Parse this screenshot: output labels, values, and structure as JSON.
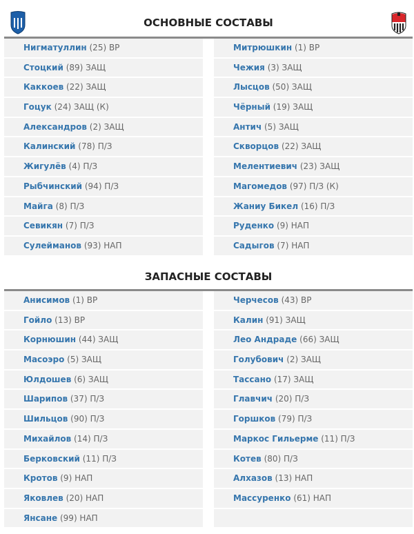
{
  "header": {
    "starting_title": "ОСНОВНЫЕ СОСТАВЫ",
    "subs_title": "ЗАПАСНЫЕ СОСТАВЫ"
  },
  "teams": {
    "home_logo": "shield-logo-blue",
    "away_logo": "shield-logo-red-black"
  },
  "colors": {
    "name": "#3676ad",
    "row_bg": "#f2f2f2",
    "divider": "#8a8a8a"
  },
  "starting": {
    "home": [
      {
        "name": "Нигматуллин",
        "info": " (25) ВР"
      },
      {
        "name": "Стоцкий",
        "info": " (89) ЗАЩ"
      },
      {
        "name": "Каккоев",
        "info": " (22) ЗАЩ"
      },
      {
        "name": "Гоцук",
        "info": " (24) ЗАЩ (К)"
      },
      {
        "name": "Александров",
        "info": " (2) ЗАЩ"
      },
      {
        "name": "Калинский",
        "info": " (78) П/З"
      },
      {
        "name": "Жигулёв",
        "info": " (4) П/З"
      },
      {
        "name": "Рыбчинский",
        "info": " (94) П/З"
      },
      {
        "name": "Майга",
        "info": " (8) П/З"
      },
      {
        "name": "Севикян",
        "info": " (7) П/З"
      },
      {
        "name": "Сулейманов",
        "info": " (93) НАП"
      }
    ],
    "away": [
      {
        "name": "Митрюшкин",
        "info": " (1) ВР"
      },
      {
        "name": "Чежия",
        "info": " (3) ЗАЩ"
      },
      {
        "name": "Лысцов",
        "info": " (50) ЗАЩ"
      },
      {
        "name": "Чёрный",
        "info": " (19) ЗАЩ"
      },
      {
        "name": "Антич",
        "info": " (5) ЗАЩ"
      },
      {
        "name": "Скворцов",
        "info": " (22) ЗАЩ"
      },
      {
        "name": "Мелентиевич",
        "info": " (23) ЗАЩ"
      },
      {
        "name": "Магомедов",
        "info": " (97) П/З (К)"
      },
      {
        "name": "Жаниу Бикел",
        "info": " (16) П/З"
      },
      {
        "name": "Руденко",
        "info": " (9) НАП"
      },
      {
        "name": "Садыгов",
        "info": " (7) НАП"
      }
    ]
  },
  "subs": {
    "home": [
      {
        "name": "Анисимов",
        "info": " (1) ВР"
      },
      {
        "name": "Гойло",
        "info": " (13) ВР"
      },
      {
        "name": "Корнюшин",
        "info": " (44) ЗАЩ"
      },
      {
        "name": "Масоэро",
        "info": " (5) ЗАЩ"
      },
      {
        "name": "Юлдошев",
        "info": " (6) ЗАЩ"
      },
      {
        "name": "Шарипов",
        "info": " (37) П/З"
      },
      {
        "name": "Шильцов",
        "info": " (90) П/З"
      },
      {
        "name": "Михайлов",
        "info": " (14) П/З"
      },
      {
        "name": "Берковский",
        "info": " (11) П/З"
      },
      {
        "name": "Кротов",
        "info": " (9) НАП"
      },
      {
        "name": "Яковлев",
        "info": " (20) НАП"
      },
      {
        "name": "Янсане",
        "info": " (99) НАП"
      }
    ],
    "away": [
      {
        "name": "Черчесов",
        "info": " (43) ВР"
      },
      {
        "name": "Калин",
        "info": " (91) ЗАЩ"
      },
      {
        "name": "Лео Андраде",
        "info": " (66) ЗАЩ"
      },
      {
        "name": "Голубович",
        "info": " (2) ЗАЩ"
      },
      {
        "name": "Тассано",
        "info": " (17) ЗАЩ"
      },
      {
        "name": "Главчич",
        "info": " (20) П/З"
      },
      {
        "name": "Горшков",
        "info": " (79) П/З"
      },
      {
        "name": "Маркос Гильерме",
        "info": " (11) П/З"
      },
      {
        "name": "Котев",
        "info": " (80) П/З"
      },
      {
        "name": "Алхазов",
        "info": " (13) НАП"
      },
      {
        "name": "Массуренко",
        "info": " (61) НАП"
      }
    ]
  }
}
